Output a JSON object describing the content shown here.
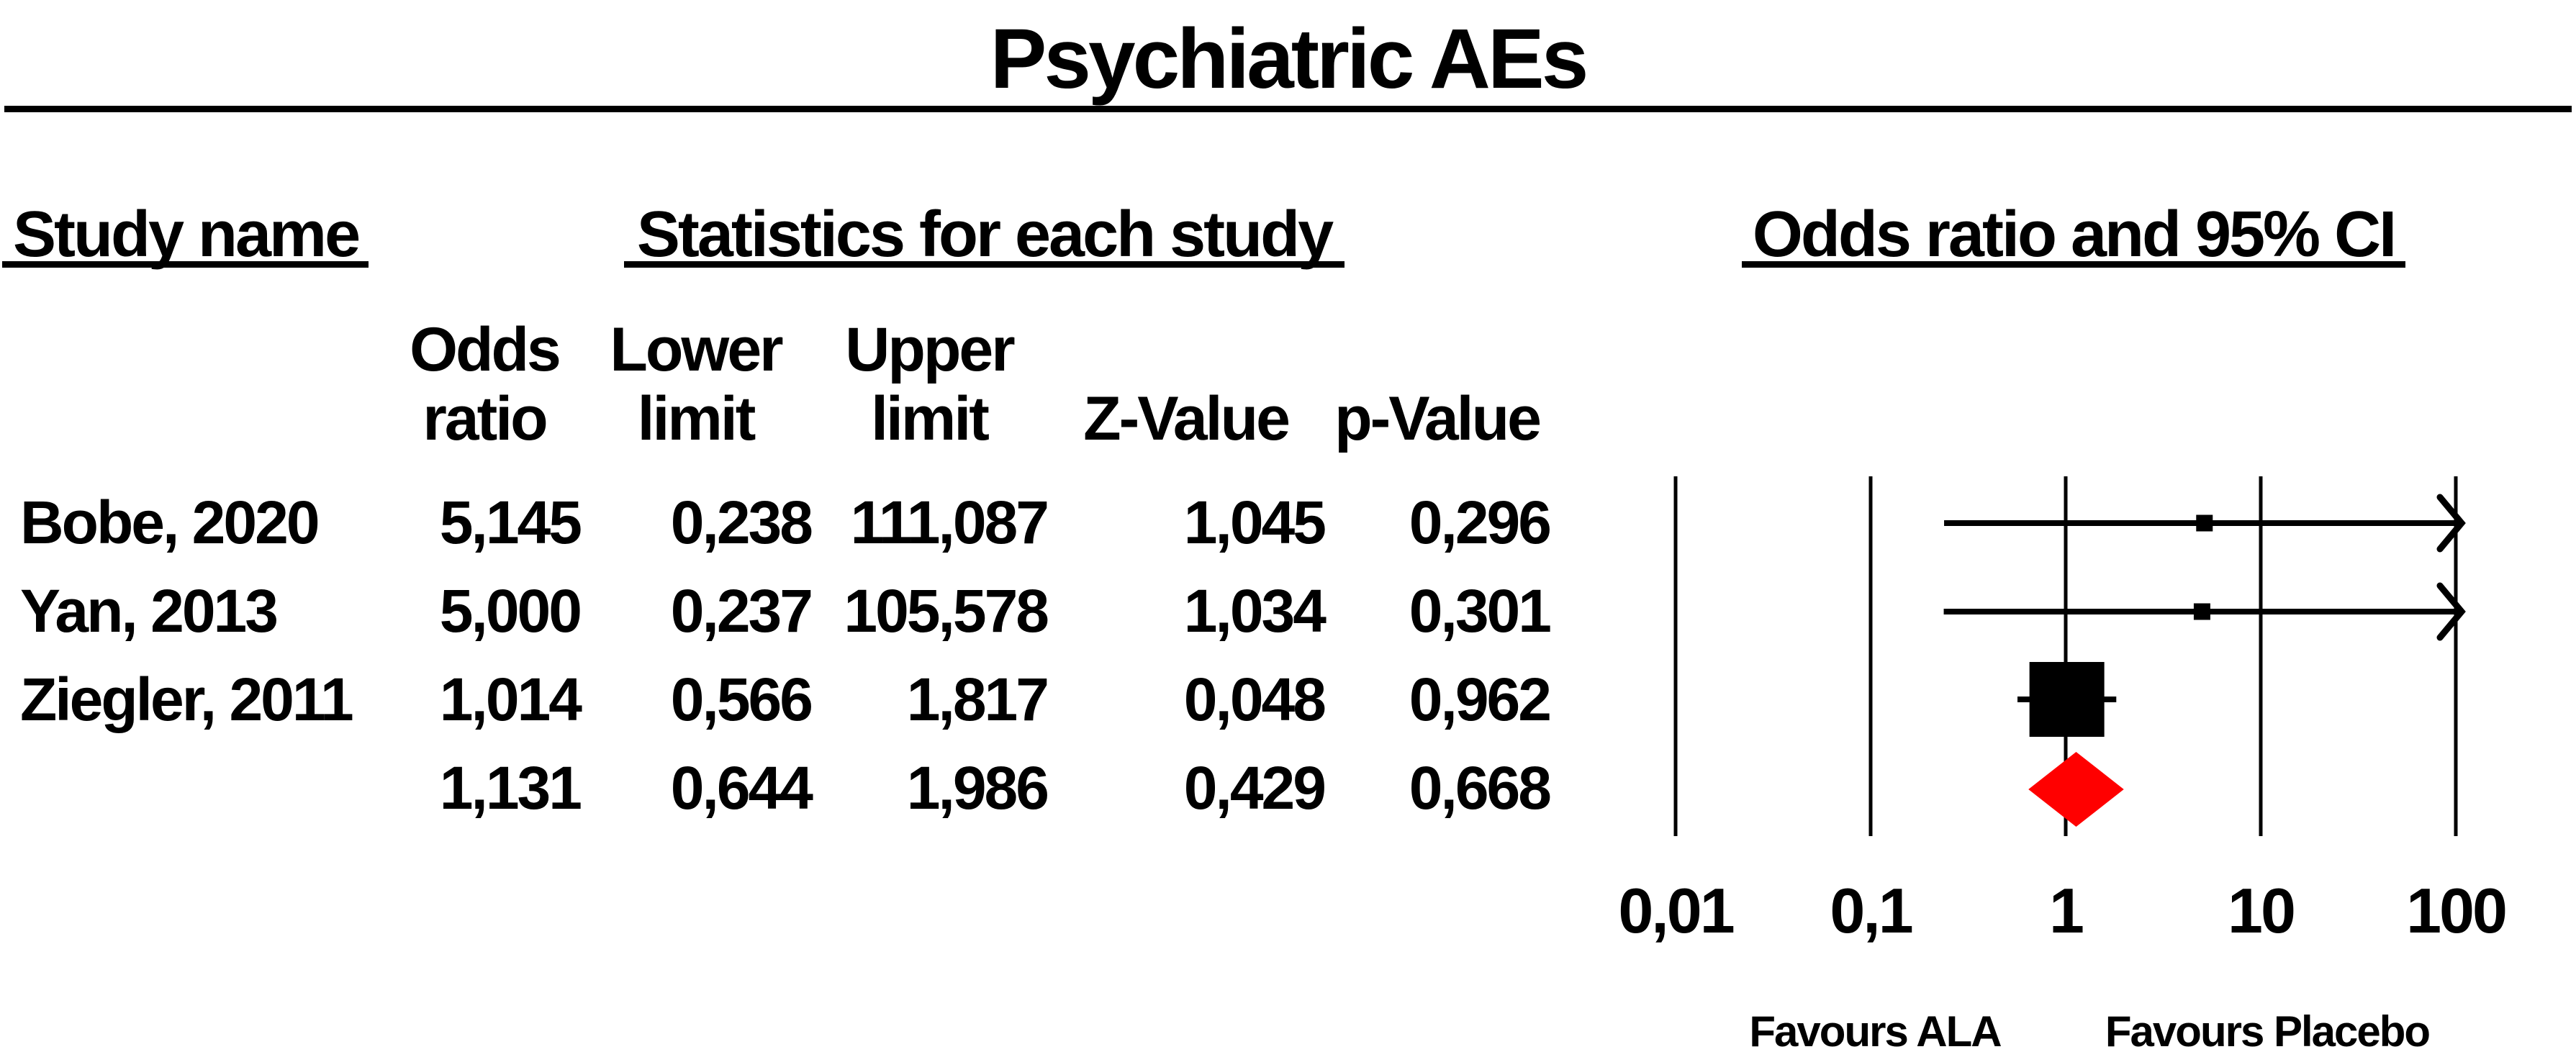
{
  "title": "Psychiatric AEs",
  "table": {
    "group_headers": {
      "study": "Study name",
      "stats": "Statistics for each study",
      "plot": "Odds ratio and 95% CI"
    },
    "sub_headers": {
      "odds_ratio": [
        "Odds",
        "ratio"
      ],
      "lower_limit": [
        "Lower",
        "limit"
      ],
      "upper_limit": [
        "Upper",
        "limit"
      ],
      "z_value": "Z-Value",
      "p_value": "p-Value"
    },
    "rows": [
      {
        "name": "Bobe, 2020",
        "or": "5,145",
        "lower": "0,238",
        "upper": "111,087",
        "z": "1,045",
        "p": "0,296"
      },
      {
        "name": "Yan, 2013",
        "or": "5,000",
        "lower": "0,237",
        "upper": "105,578",
        "z": "1,034",
        "p": "0,301"
      },
      {
        "name": "Ziegler, 2011",
        "or": "1,014",
        "lower": "0,566",
        "upper": "1,817",
        "z": "0,048",
        "p": "0,962"
      },
      {
        "name": "",
        "or": "1,131",
        "lower": "0,644",
        "upper": "1,986",
        "z": "0,429",
        "p": "0,668"
      }
    ]
  },
  "chart_data": {
    "type": "forest",
    "title": "Psychiatric AEs",
    "x_scale": "log10",
    "axis": {
      "ticks": [
        0.01,
        0.1,
        1,
        10,
        100
      ],
      "tick_labels": [
        "0,01",
        "0,1",
        "1",
        "10",
        "100"
      ],
      "min": 0.01,
      "max": 100
    },
    "footer_labels": {
      "left": "Favours ALA",
      "right": "Favours Placebo"
    },
    "studies": [
      {
        "name": "Bobe, 2020",
        "odds_ratio": 5.145,
        "lower": 0.238,
        "upper": 111.087,
        "z": 1.045,
        "p": 0.296,
        "marker_px": 23
      },
      {
        "name": "Yan, 2013",
        "odds_ratio": 5.0,
        "lower": 0.237,
        "upper": 105.578,
        "z": 1.034,
        "p": 0.301,
        "marker_px": 23
      },
      {
        "name": "Ziegler, 2011",
        "odds_ratio": 1.014,
        "lower": 0.566,
        "upper": 1.817,
        "z": 0.048,
        "p": 0.962,
        "marker_px": 104
      }
    ],
    "summary": {
      "odds_ratio": 1.131,
      "lower": 0.644,
      "upper": 1.986,
      "z": 0.429,
      "p": 0.668
    },
    "colors": {
      "study_marker": "#000000",
      "ci_line": "#000000",
      "axis_line": "#000000",
      "summary_diamond": "#ff0000"
    }
  }
}
